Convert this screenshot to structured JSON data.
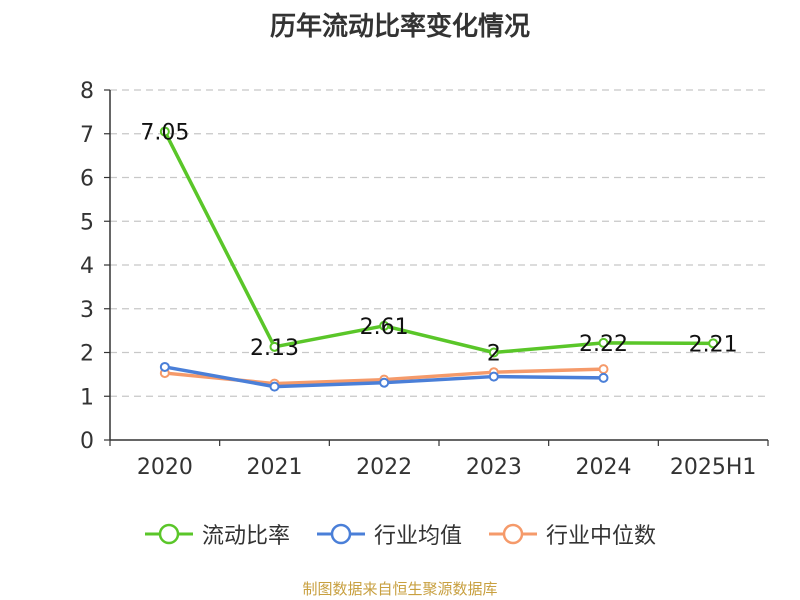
{
  "chart_data": {
    "type": "line",
    "title": "历年流动比率变化情况",
    "categories": [
      "2020",
      "2021",
      "2022",
      "2023",
      "2024",
      "2025H1"
    ],
    "ylim": [
      0,
      8
    ],
    "yticks": [
      "0",
      "1",
      "2",
      "3",
      "4",
      "5",
      "6",
      "7",
      "8"
    ],
    "grid": true,
    "legend_position": "bottom",
    "series": [
      {
        "name": "流动比率",
        "color": "#5ac629",
        "values": [
          7.05,
          2.13,
          2.61,
          2.0,
          2.22,
          2.21
        ],
        "labels": [
          "7.05",
          "2.13",
          "2.61",
          "2",
          "2.22",
          "2.21"
        ]
      },
      {
        "name": "行业均值",
        "color": "#4a7fd8",
        "values": [
          1.67,
          1.22,
          1.31,
          1.45,
          1.42,
          null
        ]
      },
      {
        "name": "行业中位数",
        "color": "#f59a6a",
        "values": [
          1.53,
          1.29,
          1.38,
          1.55,
          1.62,
          null
        ]
      }
    ]
  },
  "source": "制图数据来自恒生聚源数据库"
}
